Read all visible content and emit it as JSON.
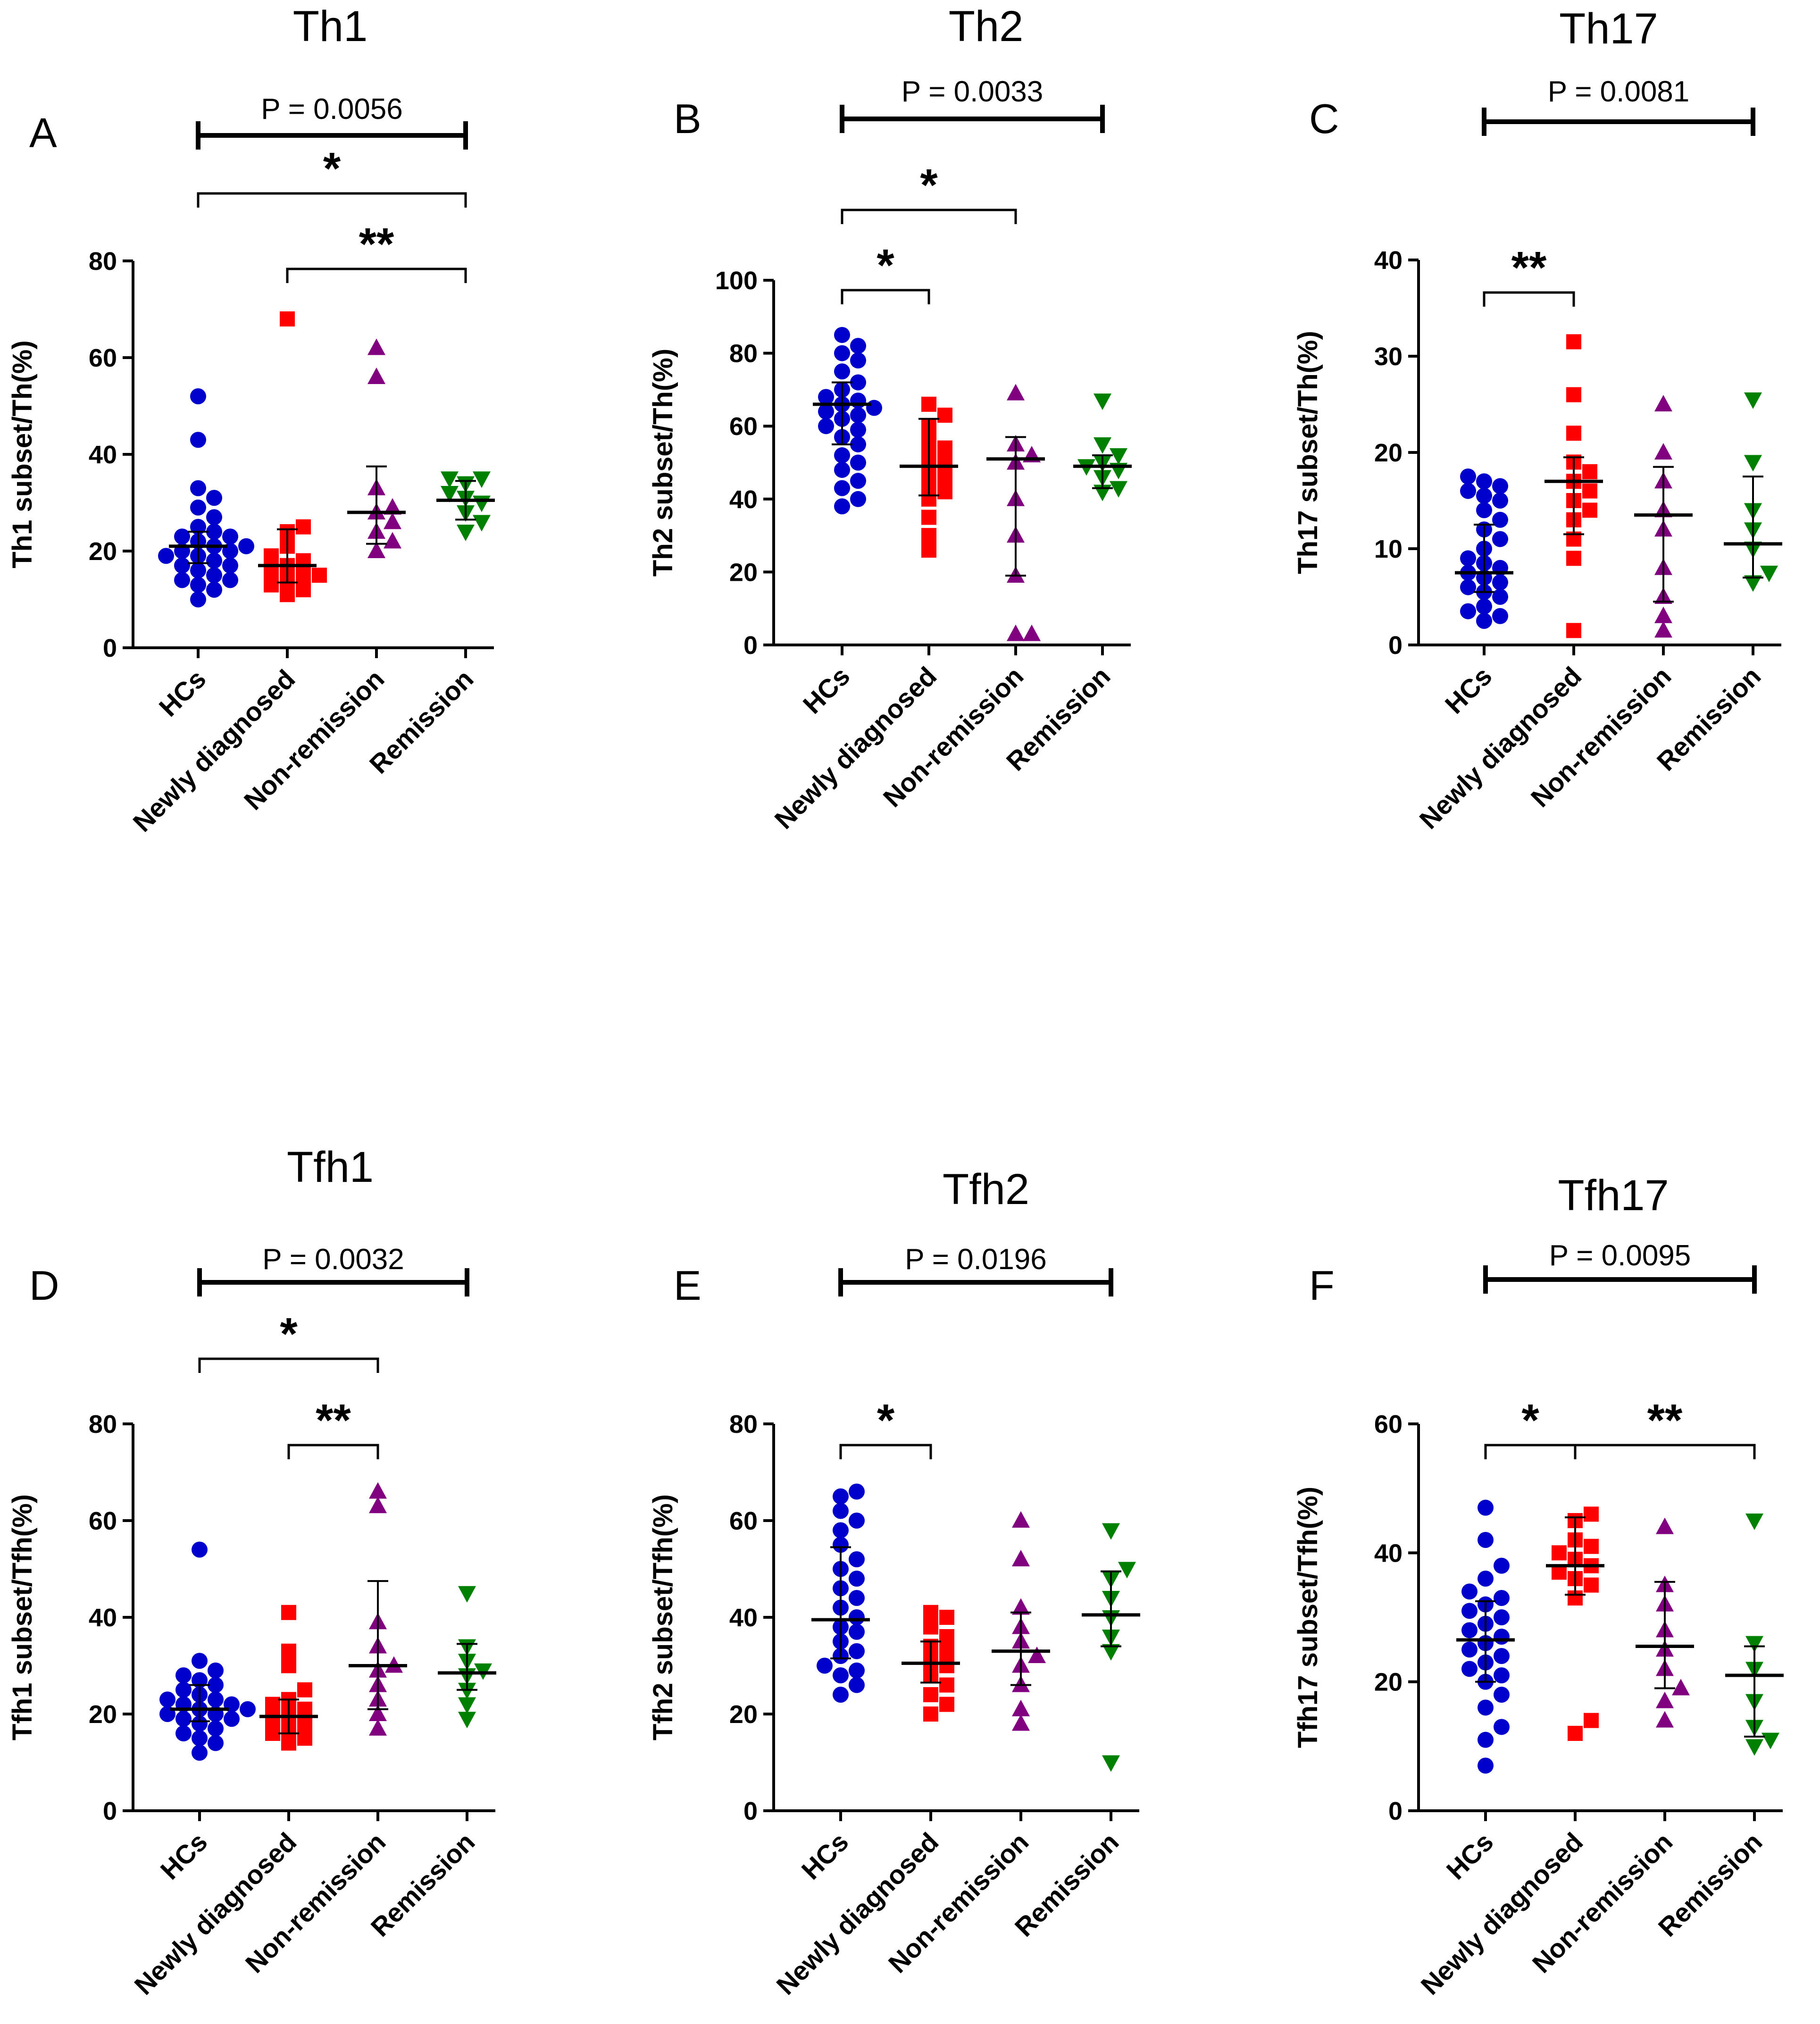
{
  "colors": {
    "hc": "#0000CC",
    "newly": "#FF0000",
    "non": "#800080",
    "rem": "#008000"
  },
  "charts": [
    {
      "panel": "A",
      "title": "Th1",
      "ylabel": "Th1 subset/Th(%)",
      "ylim": [
        0,
        80
      ],
      "yticks": [
        0,
        20,
        40,
        60,
        80
      ],
      "categories": [
        "HCs",
        "Newly diagnosed",
        "Non-remission",
        "Remission"
      ],
      "markers": [
        "circle",
        "square",
        "triangle-up",
        "triangle-down"
      ],
      "points": [
        [
          10,
          12,
          13,
          14,
          14,
          15,
          16,
          17,
          17,
          18,
          19,
          19,
          20,
          20,
          21,
          21,
          22,
          23,
          23,
          24,
          25,
          27,
          29,
          31,
          33,
          43,
          52
        ],
        [
          11,
          12,
          13,
          14,
          15,
          15,
          16,
          17,
          18,
          19,
          21,
          24,
          25,
          68
        ],
        [
          20,
          22,
          24,
          26,
          28,
          29,
          33,
          56,
          62
        ],
        [
          24,
          26,
          28,
          30,
          31,
          32,
          34,
          35,
          35
        ]
      ],
      "center": [
        21,
        17,
        28,
        30.5
      ],
      "err": [
        [
          17.5,
          24
        ],
        [
          13.5,
          24.5
        ],
        [
          21.5,
          37.5
        ],
        [
          26.5,
          34.5
        ]
      ],
      "p_text": "P = 0.0056",
      "pbracket": {
        "from": 0,
        "to": 3
      },
      "brackets": [
        {
          "from": 0,
          "to": 3,
          "label": "*"
        },
        {
          "from": 1,
          "to": 3,
          "label": "**"
        }
      ]
    },
    {
      "panel": "B",
      "title": "Th2",
      "ylabel": "Th2 subset/Th(%)",
      "ylim": [
        0,
        100
      ],
      "yticks": [
        0,
        20,
        40,
        60,
        80,
        100
      ],
      "categories": [
        "HCs",
        "Newly diagnosed",
        "Non-remission",
        "Remission"
      ],
      "markers": [
        "circle",
        "square",
        "triangle-up",
        "triangle-down"
      ],
      "points": [
        [
          38,
          40,
          43,
          45,
          48,
          50,
          52,
          55,
          57,
          59,
          60,
          62,
          63,
          64,
          65,
          66,
          67,
          68,
          70,
          72,
          75,
          78,
          80,
          82,
          85
        ],
        [
          26,
          30,
          35,
          40,
          42,
          44,
          46,
          48,
          50,
          52,
          54,
          56,
          60,
          63,
          66
        ],
        [
          3,
          3,
          19,
          30,
          40,
          50,
          52,
          55,
          69
        ],
        [
          42,
          43,
          46,
          48,
          49,
          50,
          52,
          55,
          67
        ]
      ],
      "center": [
        66,
        49,
        51,
        49
      ],
      "err": [
        [
          55,
          72
        ],
        [
          41,
          62
        ],
        [
          19,
          57
        ],
        [
          43,
          52
        ]
      ],
      "p_text": "P = 0.0033",
      "pbracket": {
        "from": 0,
        "to": 3
      },
      "brackets": [
        {
          "from": 0,
          "to": 2,
          "label": "*"
        },
        {
          "from": 0,
          "to": 1,
          "label": "*"
        }
      ]
    },
    {
      "panel": "C",
      "title": "Th17",
      "ylabel": "Th17 subset/Th(%)",
      "ylim": [
        0,
        40
      ],
      "yticks": [
        0,
        10,
        20,
        30,
        40
      ],
      "categories": [
        "HCs",
        "Newly diagnosed",
        "Non-remission",
        "Remission"
      ],
      "markers": [
        "circle",
        "square",
        "triangle-up",
        "triangle-down"
      ],
      "points": [
        [
          2.5,
          3,
          3.5,
          4,
          5,
          5.5,
          6,
          6.5,
          7,
          7.5,
          8,
          8.5,
          9,
          10,
          11,
          12,
          13,
          14,
          15,
          15.5,
          16,
          16.5,
          17,
          17.5
        ],
        [
          1.5,
          9,
          11,
          13,
          14,
          15,
          16,
          17,
          18,
          19,
          22,
          26,
          31.5
        ],
        [
          1.5,
          3,
          5,
          8,
          12,
          14,
          17,
          20,
          25
        ],
        [
          6.5,
          7.5,
          10,
          12,
          14,
          19,
          25.5
        ]
      ],
      "center": [
        7.5,
        17,
        13.5,
        10.5
      ],
      "err": [
        [
          5.5,
          12.5
        ],
        [
          11.5,
          19.5
        ],
        [
          4.5,
          18.5
        ],
        [
          7,
          17.5
        ]
      ],
      "p_text": "P = 0.0081",
      "pbracket": {
        "from": 0,
        "to": 3
      },
      "brackets": [
        {
          "from": 0,
          "to": 1,
          "label": "**"
        }
      ]
    },
    {
      "panel": "D",
      "title": "Tfh1",
      "ylabel": "Tfh1 subset/Tfh(%)",
      "ylim": [
        0,
        80
      ],
      "yticks": [
        0,
        20,
        40,
        60,
        80
      ],
      "categories": [
        "HCs",
        "Newly diagnosed",
        "Non-remission",
        "Remission"
      ],
      "markers": [
        "circle",
        "square",
        "triangle-up",
        "triangle-down"
      ],
      "points": [
        [
          12,
          14,
          15,
          16,
          17,
          18,
          19,
          19,
          20,
          20,
          21,
          21,
          22,
          22,
          23,
          23,
          24,
          25,
          26,
          27,
          28,
          29,
          31,
          54
        ],
        [
          14,
          15,
          16,
          17,
          18,
          19,
          20,
          21,
          22,
          23,
          25,
          30,
          33,
          41
        ],
        [
          17,
          20,
          23,
          26,
          29,
          30,
          34,
          39,
          63,
          66
        ],
        [
          19,
          22,
          25,
          28,
          29,
          31,
          34,
          45
        ]
      ],
      "center": [
        21,
        19.5,
        30,
        28.5
      ],
      "err": [
        [
          18.5,
          26
        ],
        [
          16,
          23
        ],
        [
          21,
          47.5
        ],
        [
          25,
          34.5
        ]
      ],
      "p_text": "P = 0.0032",
      "pbracket": {
        "from": 0,
        "to": 3
      },
      "brackets": [
        {
          "from": 0,
          "to": 2,
          "label": "*"
        },
        {
          "from": 1,
          "to": 2,
          "label": "**"
        }
      ]
    },
    {
      "panel": "E",
      "title": "Tfh2",
      "ylabel": "Tfh2 subset/Tfh(%)",
      "ylim": [
        0,
        80
      ],
      "yticks": [
        0,
        20,
        40,
        60,
        80
      ],
      "categories": [
        "HCs",
        "Newly diagnosed",
        "Non-remission",
        "Remission"
      ],
      "markers": [
        "circle",
        "square",
        "triangle-up",
        "triangle-down"
      ],
      "points": [
        [
          24,
          26,
          28,
          29,
          30,
          32,
          33,
          35,
          37,
          38,
          40,
          42,
          44,
          46,
          48,
          50,
          52,
          55,
          58,
          60,
          62,
          65,
          66
        ],
        [
          20,
          22,
          24,
          26,
          28,
          30,
          31,
          33,
          34,
          36,
          38,
          40,
          41
        ],
        [
          18,
          21,
          26,
          30,
          32,
          35,
          38,
          42,
          52,
          60
        ],
        [
          10,
          33,
          36,
          40,
          44,
          48,
          50,
          58
        ]
      ],
      "center": [
        39.5,
        30.5,
        33,
        40.5
      ],
      "err": [
        [
          31.5,
          54.5
        ],
        [
          26.5,
          35
        ],
        [
          26,
          41
        ],
        [
          34,
          49.5
        ]
      ],
      "p_text": "P = 0.0196",
      "pbracket": {
        "from": 0,
        "to": 3
      },
      "brackets": [
        {
          "from": 0,
          "to": 1,
          "label": "*"
        }
      ]
    },
    {
      "panel": "F",
      "title": "Tfh17",
      "ylabel": "Tfh17 subset/Tfh(%)",
      "ylim": [
        0,
        60
      ],
      "yticks": [
        0,
        20,
        40,
        60
      ],
      "categories": [
        "HCs",
        "Newly diagnosed",
        "Non-remission",
        "Remission"
      ],
      "markers": [
        "circle",
        "square",
        "triangle-up",
        "triangle-down"
      ],
      "points": [
        [
          7,
          11,
          13,
          16,
          18,
          20,
          21,
          22,
          23,
          24,
          25,
          26,
          27,
          28,
          29,
          30,
          31,
          32,
          33,
          34,
          36,
          38,
          42,
          47
        ],
        [
          12,
          14,
          33,
          35,
          36,
          37,
          38,
          39,
          40,
          41,
          42,
          45,
          46
        ],
        [
          14,
          17,
          19,
          22,
          25,
          28,
          32,
          35,
          44
        ],
        [
          10,
          11,
          13,
          17,
          22,
          26,
          45
        ]
      ],
      "center": [
        26.5,
        38,
        25.5,
        21
      ],
      "err": [
        [
          20,
          32.5
        ],
        [
          33.5,
          45.5
        ],
        [
          19,
          35.5
        ],
        [
          11.5,
          25.5
        ]
      ],
      "p_text": "P = 0.0095",
      "pbracket": {
        "from": 0,
        "to": 3
      },
      "brackets": [
        {
          "from": 0,
          "to": 1,
          "label": "*"
        },
        {
          "from": 1,
          "to": 3,
          "label": "**"
        }
      ]
    }
  ]
}
